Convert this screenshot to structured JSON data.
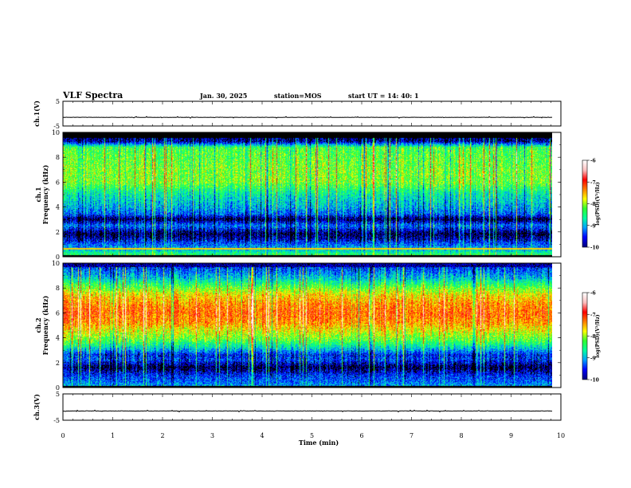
{
  "header": {
    "title": "VLF Spectra",
    "date": "Jan. 30, 2025",
    "station": "station=MOS",
    "start": "start UT =  14: 40: 1"
  },
  "colors": {
    "colormap": [
      "#000080",
      "#0000ff",
      "#00a0ff",
      "#00ffa0",
      "#30ff30",
      "#ffff00",
      "#ff8000",
      "#ff0000",
      "#ffc0c0",
      "#ffffff"
    ],
    "trace": "#000000",
    "cyan_line": "#40ffff"
  },
  "chart_data": [
    {
      "type": "line",
      "name": "ch1-waveform",
      "ylabel": "ch.1(V)",
      "ylim": [
        -5,
        5
      ],
      "y_ticks": [
        "5",
        "-5"
      ],
      "baseline": -1.5,
      "xlim": [
        0,
        10
      ]
    },
    {
      "type": "heatmap",
      "name": "ch1-spectrogram",
      "ylabel": "ch.1\nFrequency (kHz)",
      "ylabel_lines": [
        "ch.1",
        "Frequency (kHz)"
      ],
      "ylim": [
        0,
        10
      ],
      "y_ticks": [
        "0",
        "2",
        "4",
        "6",
        "8",
        "10"
      ],
      "xlim": [
        0,
        9.85
      ],
      "colorbar": {
        "label": "log(PSD)(V²/Hz)",
        "ticks": [
          "-6",
          "-7",
          "-8",
          "-9",
          "-10"
        ],
        "range": [
          -10,
          -6
        ]
      },
      "profile": [
        [
          0.0,
          -8.2
        ],
        [
          0.5,
          -8.9
        ],
        [
          1.0,
          -9.3
        ],
        [
          1.4,
          -9.7
        ],
        [
          1.8,
          -10.0
        ],
        [
          2.5,
          -9.2
        ],
        [
          3.0,
          -10.0
        ],
        [
          3.4,
          -9.3
        ],
        [
          4.0,
          -9.0
        ],
        [
          5.0,
          -8.7
        ],
        [
          6.0,
          -8.1
        ],
        [
          7.0,
          -8.1
        ],
        [
          8.0,
          -8.2
        ],
        [
          8.8,
          -8.3
        ],
        [
          9.3,
          -9.8
        ],
        [
          10.0,
          -10.0
        ]
      ]
    },
    {
      "type": "heatmap",
      "name": "ch2-spectrogram",
      "ylabel": "ch.2\nFrequency (kHz)",
      "ylabel_lines": [
        "ch.2",
        "Frequency (kHz)"
      ],
      "ylim": [
        0,
        10
      ],
      "y_ticks": [
        "0",
        "2",
        "4",
        "6",
        "8",
        "10"
      ],
      "xlim": [
        0,
        9.85
      ],
      "colorbar": {
        "label": "log(PSD)(V²/Hz)",
        "ticks": [
          "-6",
          "-7",
          "-8",
          "-9",
          "-10"
        ],
        "range": [
          -10,
          -6
        ]
      },
      "profile": [
        [
          0.0,
          -9.0
        ],
        [
          0.5,
          -9.3
        ],
        [
          1.0,
          -9.5
        ],
        [
          1.6,
          -10.0
        ],
        [
          2.2,
          -9.4
        ],
        [
          2.6,
          -9.5
        ],
        [
          3.2,
          -8.8
        ],
        [
          3.8,
          -8.2
        ],
        [
          4.5,
          -7.8
        ],
        [
          5.2,
          -7.4
        ],
        [
          6.0,
          -7.2
        ],
        [
          6.8,
          -7.4
        ],
        [
          7.5,
          -7.7
        ],
        [
          8.2,
          -8.3
        ],
        [
          8.8,
          -8.9
        ],
        [
          9.3,
          -9.2
        ],
        [
          10.0,
          -9.6
        ]
      ]
    },
    {
      "type": "line",
      "name": "ch3-waveform",
      "ylabel": "ch.3(V)",
      "ylim": [
        -5,
        5
      ],
      "y_ticks": [
        "5",
        "-5"
      ],
      "baseline": -1.5,
      "xlim": [
        0,
        10
      ],
      "xlabel": "Time (min)",
      "x_ticks": [
        "0",
        "1",
        "2",
        "3",
        "4",
        "5",
        "6",
        "7",
        "8",
        "9",
        "10"
      ]
    }
  ]
}
